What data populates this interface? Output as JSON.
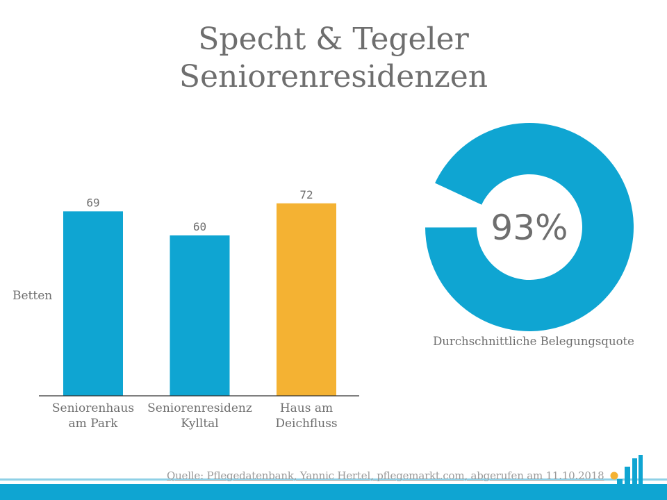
{
  "title": {
    "line1": "Specht & Tegeler",
    "line2": "Seniorenresidenzen"
  },
  "colors": {
    "primary": "#0fa5d2",
    "highlight": "#f4b233",
    "text": "#6e6e6e",
    "axis": "#333333",
    "footer_bar": "#0fa5d2",
    "logo_dot": "#f4b233"
  },
  "chart_data": [
    {
      "type": "bar",
      "categories": [
        [
          "Seniorenhaus",
          "am Park"
        ],
        [
          "Seniorenresidenz",
          "Kylltal"
        ],
        [
          "Haus am",
          "Deichfluss"
        ]
      ],
      "series": [
        {
          "values": [
            69,
            60,
            72
          ]
        }
      ],
      "bar_colors": [
        "#0fa5d2",
        "#0fa5d2",
        "#f4b233"
      ],
      "data_labels": [
        "69",
        "60",
        "72"
      ],
      "ylabel": "Betten",
      "ylim": [
        0,
        80
      ],
      "grid": false,
      "legend": "none"
    },
    {
      "type": "pie",
      "subtype": "donut",
      "slices": [
        {
          "value": 93,
          "color": "#0fa5d2"
        },
        {
          "value": 7,
          "color": "#ffffff"
        }
      ],
      "center_label": "93%",
      "caption": "Durchschnittliche Belegungsquote"
    }
  ],
  "footer": {
    "source": "Quelle: Pflegedatenbank, Yannic Hertel, pflegemarkt.com, abgerufen am 11.10.2018",
    "logo": "pflegemarkt-logo-icon"
  }
}
